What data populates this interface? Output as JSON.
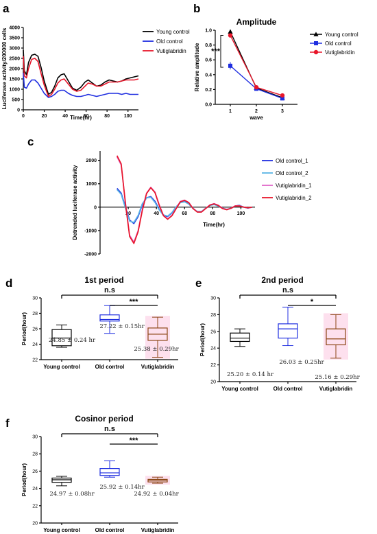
{
  "panel_labels": {
    "a": "a",
    "b": "b",
    "c": "c",
    "d": "d",
    "e": "e",
    "f": "f"
  },
  "chart_data": [
    {
      "id": "a",
      "type": "line",
      "title": "",
      "xlabel": "Time(hr)",
      "ylabel": "Luciferase activity/200000 cells",
      "xlim": [
        0,
        110
      ],
      "ylim": [
        0,
        4000
      ],
      "xticks": [
        0,
        20,
        40,
        60,
        80,
        100
      ],
      "yticks": [
        0,
        500,
        1000,
        1500,
        2000,
        2500,
        3000,
        3500,
        4000
      ],
      "legend_position": "right",
      "series": [
        {
          "name": "Young control",
          "color": "#000000",
          "x": [
            0,
            1,
            3,
            5,
            8,
            11,
            14,
            17,
            20,
            24,
            27,
            30,
            33,
            36,
            39,
            43,
            47,
            51,
            55,
            59,
            62,
            66,
            70,
            74,
            78,
            82,
            86,
            90,
            94,
            98,
            102,
            106,
            110
          ],
          "y": [
            2900,
            1900,
            1700,
            2300,
            2650,
            2700,
            2600,
            2050,
            1400,
            750,
            850,
            1150,
            1550,
            1700,
            1750,
            1400,
            1050,
            950,
            1100,
            1350,
            1450,
            1300,
            1150,
            1200,
            1350,
            1450,
            1400,
            1350,
            1400,
            1500,
            1550,
            1600,
            1650
          ]
        },
        {
          "name": "Old control",
          "color": "#1f2ee0",
          "x": [
            0,
            1,
            3,
            5,
            8,
            11,
            14,
            17,
            20,
            24,
            27,
            30,
            33,
            36,
            39,
            43,
            47,
            51,
            55,
            59,
            62,
            66,
            70,
            74,
            78,
            82,
            86,
            90,
            94,
            98,
            102,
            106,
            110
          ],
          "y": [
            1800,
            1100,
            1050,
            1250,
            1450,
            1450,
            1300,
            1050,
            800,
            600,
            650,
            750,
            900,
            950,
            950,
            800,
            700,
            650,
            650,
            700,
            750,
            700,
            650,
            700,
            750,
            800,
            800,
            800,
            750,
            800,
            750,
            750,
            750
          ]
        },
        {
          "name": "Vutiglabridin",
          "color": "#e8162a",
          "x": [
            0,
            1,
            3,
            5,
            8,
            11,
            14,
            17,
            20,
            24,
            27,
            30,
            33,
            36,
            39,
            43,
            47,
            51,
            55,
            59,
            62,
            66,
            70,
            74,
            78,
            82,
            86,
            90,
            94,
            98,
            102,
            106,
            110
          ],
          "y": [
            2600,
            1650,
            1550,
            2000,
            2450,
            2500,
            2350,
            1750,
            1200,
            650,
            750,
            1000,
            1300,
            1450,
            1500,
            1250,
            1000,
            900,
            950,
            1150,
            1300,
            1250,
            1150,
            1150,
            1250,
            1350,
            1350,
            1350,
            1400,
            1450,
            1450,
            1450,
            1500
          ]
        }
      ]
    },
    {
      "id": "b",
      "type": "line",
      "title": "Amplitude",
      "xlabel": "wave",
      "ylabel": "Relative amplitude",
      "categories": [
        "1",
        "2",
        "3"
      ],
      "ylim": [
        0,
        1.0
      ],
      "yticks": [
        0.0,
        0.2,
        0.4,
        0.6,
        0.8,
        1.0
      ],
      "legend_position": "right",
      "annotation": "***",
      "series": [
        {
          "name": "Young control",
          "color": "#000000",
          "marker": "triangle",
          "values": [
            0.98,
            0.22,
            0.09
          ],
          "errors": [
            0.02,
            0.01,
            0.01
          ]
        },
        {
          "name": "Old control",
          "color": "#1f2ee0",
          "marker": "square",
          "values": [
            0.52,
            0.21,
            0.08
          ],
          "errors": [
            0.05,
            0.01,
            0.01
          ]
        },
        {
          "name": "Vutiglabridin",
          "color": "#e8162a",
          "marker": "circle",
          "values": [
            0.93,
            0.23,
            0.12
          ],
          "errors": [
            0.02,
            0.01,
            0.01
          ]
        }
      ]
    },
    {
      "id": "c",
      "type": "line",
      "title": "",
      "xlabel": "Time(hr)",
      "ylabel": "Detrended luciferase activity",
      "xlim": [
        0,
        110
      ],
      "ylim": [
        -2000,
        2400
      ],
      "xticks": [
        20,
        40,
        60,
        80,
        100
      ],
      "yticks": [
        -2000,
        -1000,
        0,
        1000,
        2000
      ],
      "legend_position": "right",
      "series": [
        {
          "name": "Old control_1",
          "color": "#1f2ee0",
          "x": [
            12,
            15,
            18,
            21,
            24,
            27,
            30,
            33,
            36,
            39,
            42,
            45,
            48,
            51,
            54,
            57,
            60,
            63,
            66,
            69,
            72,
            75,
            78,
            81,
            84,
            87,
            90,
            93,
            96,
            99,
            102,
            105,
            108
          ],
          "y": [
            800,
            600,
            0,
            -550,
            -700,
            -400,
            100,
            400,
            450,
            250,
            -100,
            -350,
            -400,
            -250,
            0,
            200,
            250,
            150,
            -50,
            -200,
            -200,
            -50,
            80,
            120,
            50,
            -50,
            -100,
            -50,
            50,
            80,
            0,
            -40,
            0
          ]
        },
        {
          "name": "Old control_2",
          "color": "#5ab4e6",
          "x": [
            12,
            15,
            18,
            21,
            24,
            27,
            30,
            33,
            36,
            39,
            42,
            45,
            48,
            51,
            54,
            57,
            60,
            63,
            66,
            69,
            72,
            75,
            78,
            81,
            84,
            87,
            90,
            93,
            96,
            99,
            102,
            105,
            108
          ],
          "y": [
            750,
            550,
            -50,
            -600,
            -650,
            -350,
            150,
            400,
            420,
            200,
            -120,
            -330,
            -380,
            -230,
            20,
            190,
            230,
            130,
            -60,
            -180,
            -180,
            -40,
            70,
            110,
            40,
            -40,
            -90,
            -40,
            40,
            70,
            0,
            -30,
            0
          ]
        },
        {
          "name": "Vutiglabridin_1",
          "color": "#e066c8",
          "x": [
            12,
            15,
            18,
            21,
            24,
            27,
            30,
            33,
            36,
            39,
            42,
            45,
            48,
            51,
            54,
            57,
            60,
            63,
            66,
            69,
            72,
            75,
            78,
            81,
            84,
            87,
            90,
            93,
            96,
            99,
            102,
            105,
            108
          ],
          "y": [
            2150,
            1800,
            200,
            -1200,
            -1500,
            -1000,
            -100,
            600,
            850,
            650,
            100,
            -350,
            -500,
            -350,
            -50,
            250,
            300,
            200,
            -50,
            -200,
            -200,
            -50,
            100,
            150,
            80,
            -50,
            -100,
            -40,
            60,
            60,
            0,
            -30,
            0
          ]
        },
        {
          "name": "Vutiglabridin_2",
          "color": "#e8162a",
          "x": [
            12,
            15,
            18,
            21,
            24,
            27,
            30,
            33,
            36,
            39,
            42,
            45,
            48,
            51,
            54,
            57,
            60,
            63,
            66,
            69,
            72,
            75,
            78,
            81,
            84,
            87,
            90,
            93,
            96,
            99,
            102,
            105,
            108
          ],
          "y": [
            2200,
            1850,
            150,
            -1250,
            -1550,
            -1050,
            -150,
            580,
            830,
            620,
            80,
            -370,
            -520,
            -370,
            -70,
            230,
            290,
            190,
            -60,
            -210,
            -210,
            -60,
            90,
            140,
            70,
            -60,
            -110,
            -50,
            50,
            50,
            0,
            -30,
            0
          ]
        }
      ]
    },
    {
      "id": "d",
      "type": "box",
      "title": "1st period",
      "xlabel": "",
      "ylabel": "Period(hour)",
      "categories": [
        "Young control",
        "Old control",
        "Vutiglabridin"
      ],
      "ylim": [
        22,
        30
      ],
      "yticks": [
        22,
        24,
        26,
        28,
        30
      ],
      "annotations": {
        "ns": "n.s",
        "star": "***"
      },
      "series": [
        {
          "name": "Young control",
          "color": "#000000",
          "min": 23.6,
          "q1": 23.8,
          "median": 24.8,
          "q3": 25.9,
          "max": 26.5,
          "label": "24.85 ± 0.24 hr"
        },
        {
          "name": "Old control",
          "color": "#1f2ee0",
          "min": 25.4,
          "q1": 27.0,
          "median": 27.2,
          "q3": 27.8,
          "max": 29.0,
          "label": "27.22 ± 0.15hr"
        },
        {
          "name": "Vutiglabridin",
          "color": "#8b4513",
          "fill": "#fde0ee",
          "min": 22.3,
          "q1": 24.5,
          "median": 25.3,
          "q3": 26.1,
          "max": 27.5,
          "label": "25.38 ± 0.29hr"
        }
      ]
    },
    {
      "id": "e",
      "type": "box",
      "title": "2nd period",
      "xlabel": "",
      "ylabel": "Period(hour)",
      "categories": [
        "Young control",
        "Old control",
        "Vutiglabridin"
      ],
      "ylim": [
        20,
        30
      ],
      "yticks": [
        20,
        22,
        24,
        26,
        28,
        30
      ],
      "annotations": {
        "ns": "n.s",
        "star": "*"
      },
      "series": [
        {
          "name": "Young control",
          "color": "#000000",
          "min": 24.2,
          "q1": 24.8,
          "median": 25.2,
          "q3": 25.8,
          "max": 26.3,
          "label": "25.20 ± 0.14 hr"
        },
        {
          "name": "Old control",
          "color": "#1f2ee0",
          "min": 24.3,
          "q1": 25.2,
          "median": 26.3,
          "q3": 26.9,
          "max": 28.9,
          "label": "26.03 ± 0.25hr"
        },
        {
          "name": "Vutiglabridin",
          "color": "#8b4513",
          "fill": "#fde0ee",
          "min": 22.8,
          "q1": 24.4,
          "median": 25.1,
          "q3": 26.3,
          "max": 28.0,
          "label": "25.16 ± 0.29hr"
        }
      ]
    },
    {
      "id": "f",
      "type": "box",
      "title": "Cosinor period",
      "xlabel": "",
      "ylabel": "Period(hour)",
      "categories": [
        "Young control",
        "Old control",
        "Vutiglabridin"
      ],
      "ylim": [
        20,
        30
      ],
      "yticks": [
        20,
        22,
        24,
        26,
        28,
        30
      ],
      "annotations": {
        "ns": "n.s",
        "star": "***"
      },
      "series": [
        {
          "name": "Young control",
          "color": "#000000",
          "min": 24.3,
          "q1": 24.7,
          "median": 25.0,
          "q3": 25.2,
          "max": 25.4,
          "label": "24.97 ± 0.08hr"
        },
        {
          "name": "Old control",
          "color": "#1f2ee0",
          "min": 25.3,
          "q1": 25.5,
          "median": 25.8,
          "q3": 26.3,
          "max": 27.2,
          "label": "25.92 ± 0.14hr"
        },
        {
          "name": "Vutiglabridin",
          "color": "#8b4513",
          "fill": "#fde0ee",
          "min": 24.6,
          "q1": 24.75,
          "median": 24.95,
          "q3": 25.05,
          "max": 25.3,
          "label": "24.92 ± 0.04hr"
        }
      ]
    }
  ]
}
